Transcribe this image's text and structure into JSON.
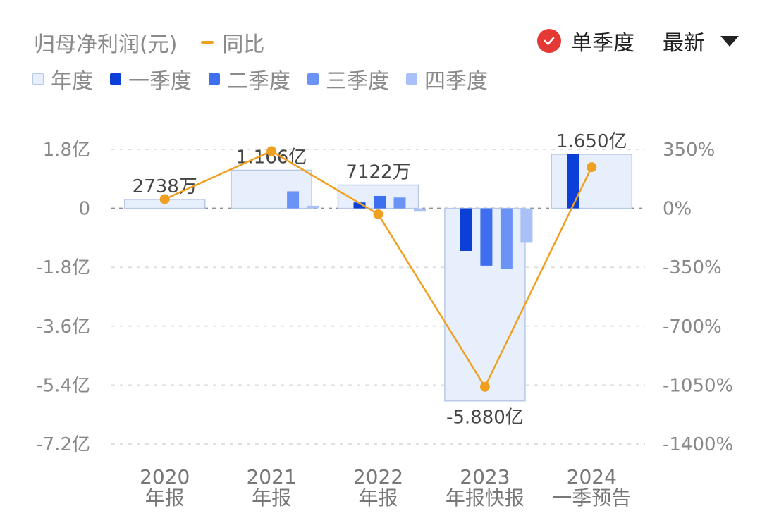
{
  "header": {
    "metric_title": "归母净利润(元)",
    "line_legend": "同比",
    "mode_label": "单季度",
    "select_label": "最新"
  },
  "legend": [
    {
      "label": "年度",
      "color": "#e8effc",
      "border": "#b8c8e8"
    },
    {
      "label": "一季度",
      "color": "#0b3fd6"
    },
    {
      "label": "二季度",
      "color": "#3d6ff0"
    },
    {
      "label": "三季度",
      "color": "#6b93f5"
    },
    {
      "label": "四季度",
      "color": "#a9c0f8"
    }
  ],
  "chart_data": {
    "type": "bar",
    "categories": [
      [
        "2020",
        "年报"
      ],
      [
        "2021",
        "年报"
      ],
      [
        "2022",
        "年报"
      ],
      [
        "2023",
        "年报快报"
      ],
      [
        "2024",
        "一季预告"
      ]
    ],
    "y_left": {
      "ticks": [
        "1.8亿",
        "0",
        "-1.8亿",
        "-3.6亿",
        "-5.4亿",
        "-7.2亿"
      ],
      "tick_values": [
        1.8,
        0,
        -1.8,
        -3.6,
        -5.4,
        -7.2
      ],
      "unit": "亿",
      "range": [
        -7.2,
        1.8
      ]
    },
    "y_right": {
      "ticks": [
        "350%",
        "0%",
        "-350%",
        "-700%",
        "-1050%",
        "-1400%"
      ],
      "tick_values": [
        350,
        0,
        -350,
        -700,
        -1050,
        -1400
      ],
      "range": [
        -1400,
        350
      ]
    },
    "annual": {
      "name": "年度",
      "values": [
        0.2738,
        1.166,
        0.7122,
        -5.88,
        1.65
      ],
      "labels": [
        "2738万",
        "1.166亿",
        "7122万",
        "-5.880亿",
        "1.650亿"
      ]
    },
    "quarters": [
      {
        "name": "一季度",
        "values": [
          null,
          null,
          0.18,
          -1.3,
          1.65
        ]
      },
      {
        "name": "二季度",
        "values": [
          null,
          null,
          0.38,
          -1.75,
          null
        ]
      },
      {
        "name": "三季度",
        "values": [
          null,
          0.52,
          0.33,
          -1.85,
          null
        ]
      },
      {
        "name": "四季度",
        "values": [
          null,
          0.08,
          -0.1,
          -1.05,
          null
        ]
      }
    ],
    "yoy": {
      "name": "同比",
      "values": [
        55,
        340,
        -35,
        -1060,
        245
      ],
      "color": "#f0a020"
    },
    "grid": true
  }
}
